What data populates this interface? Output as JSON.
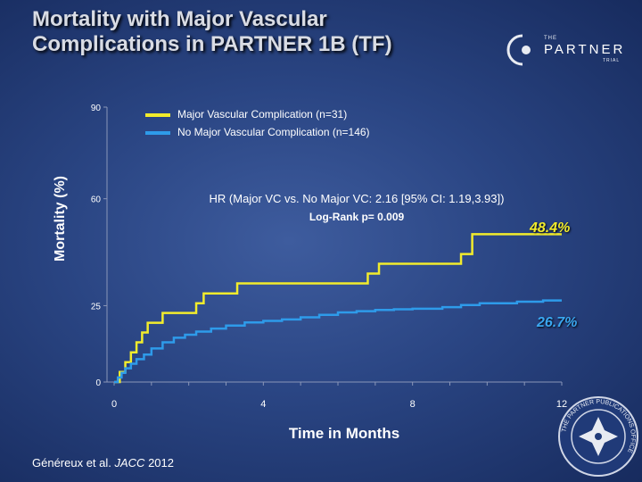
{
  "slide": {
    "title_line1": "Mortality with Major Vascular",
    "title_line2": "Complications in PARTNER 1B (TF)",
    "citation_prefix": "Généreux et al. ",
    "citation_journal": "JACC",
    "citation_year": " 2012"
  },
  "logo": {
    "small_top": "THE",
    "main": "PARTNER",
    "small_bottom": "TRIAL"
  },
  "seal": {
    "text": "THE PARTNER PUBLICATIONS OFFICE"
  },
  "annotations": {
    "hr": "HR (Major VC vs. No Major VC: 2.16 [95% CI: 1.19,3.93])",
    "logrank": "Log-Rank p= 0.009",
    "final_major": "48.4%",
    "final_none": "26.7%"
  },
  "colors": {
    "major": "#f2ec2c",
    "none": "#2e9bea",
    "axis": "#8a96b8",
    "final_major": "#f2ec2c",
    "final_none": "#3aa6f0"
  },
  "chart_data": {
    "type": "line",
    "title": "Mortality with Major Vascular Complications in PARTNER 1B (TF)",
    "xlabel": "Time in Months",
    "ylabel": "Mortality (%)",
    "xlim": [
      0,
      12
    ],
    "ylim": [
      0,
      90
    ],
    "x_ticks": [
      0,
      4,
      8,
      12
    ],
    "x_tick_labels": [
      "0",
      "4",
      "8",
      "12"
    ],
    "y_ticks": [
      0,
      25,
      60,
      90
    ],
    "y_tick_labels": [
      "0",
      "25",
      "60",
      "90"
    ],
    "grid": false,
    "legend_position": "top",
    "series": [
      {
        "name": "Major Vascular Complication (n=31)",
        "step": true,
        "x": [
          0,
          0.15,
          0.3,
          0.45,
          0.6,
          0.75,
          0.9,
          1.3,
          2.2,
          2.4,
          3.3,
          6.8,
          7.1,
          9.3,
          9.6,
          12
        ],
        "y": [
          0,
          3.3,
          6.5,
          9.7,
          13,
          16.2,
          19.4,
          22.6,
          25.8,
          29.0,
          32.3,
          35.5,
          38.7,
          41.9,
          48.4,
          48.4
        ]
      },
      {
        "name": "No Major Vascular Complication (n=146)",
        "step": true,
        "x": [
          0,
          0.1,
          0.2,
          0.3,
          0.45,
          0.6,
          0.8,
          1.0,
          1.3,
          1.6,
          1.9,
          2.2,
          2.6,
          3.0,
          3.5,
          4.0,
          4.5,
          5.0,
          5.5,
          6.0,
          6.5,
          7.0,
          7.5,
          8.0,
          8.8,
          9.3,
          9.8,
          10.8,
          11.5,
          12
        ],
        "y": [
          0,
          1.5,
          3.0,
          4.5,
          6.0,
          7.5,
          9.0,
          11.0,
          13.0,
          14.5,
          15.5,
          16.5,
          17.5,
          18.5,
          19.5,
          20.0,
          20.5,
          21.2,
          22.0,
          22.8,
          23.2,
          23.6,
          23.8,
          24.0,
          24.5,
          25.2,
          25.8,
          26.3,
          26.7,
          26.7
        ]
      }
    ]
  }
}
